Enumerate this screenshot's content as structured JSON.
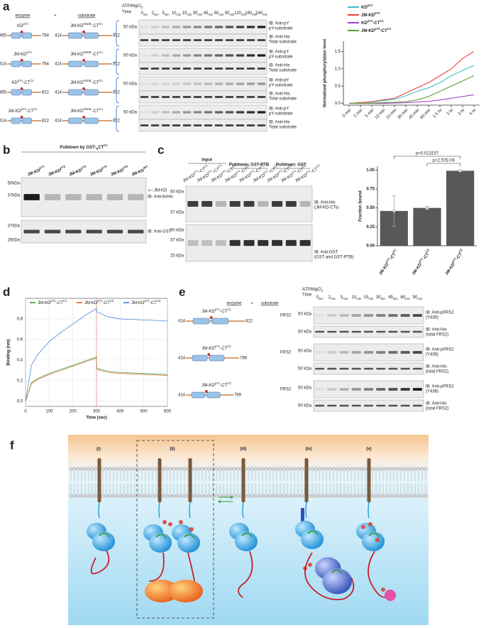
{
  "panels": {
    "a": {
      "letter": "a",
      "enzyme_header": "enzyme",
      "plus": "+",
      "substrate_header": "substrate",
      "rows": [
        {
          "enzyme": [
            "KD",
            {
              "sup": "pY1"
            }
          ],
          "substrate": [
            "JM-KD",
            {
              "sup": "K518L"
            },
            "-CT",
            {
              "sup": "C1"
            }
          ],
          "enzyme_range": [
            "465",
            "764"
          ],
          "substrate_range": [
            "414",
            "822"
          ]
        },
        {
          "enzyme": [
            "JM-KD",
            {
              "sup": "pY1"
            }
          ],
          "substrate": [
            "JM-KD",
            {
              "sup": "K518L"
            },
            "-CT",
            {
              "sup": "C1"
            }
          ],
          "enzyme_range": [
            "414",
            "764"
          ],
          "substrate_range": [
            "414",
            "822"
          ]
        },
        {
          "enzyme": [
            "KD",
            {
              "sup": "pY1"
            },
            "-CT",
            {
              "sup": "C1"
            }
          ],
          "substrate": [
            "JM-KD",
            {
              "sup": "K518L"
            },
            "-CT",
            {
              "sup": "C1"
            }
          ],
          "enzyme_range": [
            "465",
            "822"
          ],
          "substrate_range": [
            "414",
            "822"
          ]
        },
        {
          "enzyme": [
            "JM-KD",
            {
              "sup": "pY1"
            },
            "-CT",
            {
              "sup": "C1"
            }
          ],
          "substrate": [
            "JM-KD",
            {
              "sup": "K518L"
            },
            "-CT",
            {
              "sup": "C1"
            }
          ],
          "enzyme_range": [
            "414",
            "822"
          ],
          "substrate_range": [
            "414",
            "822"
          ]
        }
      ],
      "treatment": [
        "ATP/MgCl",
        {
          "sub": "2"
        }
      ],
      "time_label": "Time",
      "times": [
        [
          "0",
          {
            "sub": "min"
          }
        ],
        [
          "2",
          {
            "sub": "min"
          }
        ],
        [
          "5",
          {
            "sub": "min"
          }
        ],
        [
          "10",
          {
            "sub": "min"
          }
        ],
        [
          "15",
          {
            "sub": "min"
          }
        ],
        [
          "30",
          {
            "sub": "min"
          }
        ],
        [
          "45",
          {
            "sub": "min"
          }
        ],
        [
          "60",
          {
            "sub": "min"
          }
        ],
        [
          "90",
          {
            "sub": "min"
          }
        ],
        [
          "120",
          {
            "sub": "min"
          }
        ],
        [
          "180",
          {
            "sub": "min"
          }
        ],
        [
          "240",
          {
            "sub": "min"
          }
        ]
      ],
      "mw": "50 kDa",
      "ib": [
        [
          "IB: Anti-pY",
          "pY-substrate"
        ],
        [
          "IB: Anti-His",
          "Total substrate"
        ]
      ]
    },
    "b": {
      "letter": "b",
      "title": [
        "Pulldown by GST-",
        {
          "sub": "P"
        },
        "CT",
        {
          "sup": "C1"
        }
      ],
      "lanes": [
        [
          "JM-KD",
          {
            "sup": "pY1"
          }
        ],
        [
          "JM-KD",
          {
            "sup": "pY2"
          }
        ],
        [
          "JM-KD",
          {
            "sup": "pY3"
          }
        ],
        [
          "JM-KD",
          {
            "sup": "pY4"
          }
        ],
        [
          "JM-KD",
          {
            "sup": "pY5"
          }
        ],
        [
          "JM-KD",
          {
            "sup": "WT"
          }
        ]
      ],
      "mw": [
        "50kDa",
        "37kDa",
        "37kDa",
        "25kDa"
      ],
      "band_label": "JM-KD",
      "ib": [
        "IB: Anti-6xHis",
        "IB: Anti-GST"
      ]
    },
    "c": {
      "letter": "c",
      "groups": [
        "Input",
        "Pulldown: GST-PTB",
        "Pulldown: GST"
      ],
      "lanes": [
        [
          "JM-KD",
          {
            "sup": "pY1"
          },
          "-CT",
          {
            "sup": "C1"
          }
        ],
        [
          "JM-KD",
          {
            "sup": "pY1"
          },
          "-CT",
          {
            "sup": "C2"
          }
        ],
        [
          "JM-KD",
          {
            "sup": "pY1"
          },
          "-CT",
          {
            "sup": "C3"
          }
        ],
        [
          "JM-KD",
          {
            "sup": "pY1"
          },
          "-CT",
          {
            "sup": "C1"
          }
        ],
        [
          "JM-KD",
          {
            "sup": "pY1"
          },
          "-CT",
          {
            "sup": "C2"
          }
        ],
        [
          "JM-KD",
          {
            "sup": "pY1"
          },
          "-CT",
          {
            "sup": "C3"
          }
        ],
        [
          "JM-KD",
          {
            "sup": "pY1"
          },
          "-CT",
          {
            "sup": "C1"
          }
        ],
        [
          "JM-KD",
          {
            "sup": "pY1"
          },
          "-CT",
          {
            "sup": "C2"
          }
        ],
        [
          "JM-KD",
          {
            "sup": "pY1"
          },
          "-CT",
          {
            "sup": "C3"
          }
        ]
      ],
      "mw": [
        "50 kDa",
        "37 kDa",
        "50 kDa",
        "37 kDa",
        "25 kDa"
      ],
      "ib": [
        [
          "IB: Anti-His",
          "(JM-KD-CTs)"
        ],
        [
          "IB: Anti-GST",
          "(GST and GST-PTB)"
        ]
      ]
    },
    "d": {
      "letter": "d"
    },
    "e": {
      "letter": "e",
      "enzyme_header": "enzyme",
      "plus": "+",
      "substrate_header": "substrate",
      "constructs": [
        {
          "name": [
            "JM-KD",
            {
              "sup": "pY1"
            },
            "-CT",
            {
              "sup": "C1"
            }
          ],
          "range": [
            "414",
            "822"
          ]
        },
        {
          "name": [
            "JM-KD",
            {
              "sup": "pY1"
            },
            "-CT",
            {
              "sup": "C2"
            }
          ],
          "range": [
            "414",
            "788"
          ]
        },
        {
          "name": [
            "JM-KD",
            {
              "sup": "pY1"
            },
            "-CT",
            {
              "sup": "C3"
            }
          ],
          "range": [
            "414",
            "769"
          ]
        }
      ],
      "substrate": "FRS2",
      "treatment": [
        "ATP/MgCl",
        {
          "sub": "2"
        }
      ],
      "time_label": "Time",
      "times": [
        [
          "0",
          {
            "sub": "min"
          }
        ],
        [
          "2",
          {
            "sub": "min"
          }
        ],
        [
          "5",
          {
            "sub": "min"
          }
        ],
        [
          "10",
          {
            "sub": "min"
          }
        ],
        [
          "15",
          {
            "sub": "min"
          }
        ],
        [
          "30",
          {
            "sub": "min"
          }
        ],
        [
          "45",
          {
            "sub": "min"
          }
        ],
        [
          "60",
          {
            "sub": "min"
          }
        ],
        [
          "90",
          {
            "sub": "min"
          }
        ]
      ],
      "mw": "50 kDa",
      "ib": [
        [
          "IB: Anti-pFRS2",
          "(Y436)"
        ],
        [
          "IB: Anti-His",
          "(total FRS2)"
        ]
      ]
    },
    "f": {
      "letter": "f",
      "states": [
        "(i)",
        "(ii)",
        "(iii)",
        "(iv)",
        "(v)"
      ]
    }
  },
  "chart_data": [
    {
      "type": "line",
      "ylabel": "Normalized phosphorylation level",
      "categories": [
        "0 min",
        "2 min",
        "5 min",
        "10 min",
        "15 min",
        "30 min",
        "45 min",
        "60 min",
        "1.5 hr",
        "2 hr",
        "3 hr",
        "4 hr"
      ],
      "ylim": [
        -0.05,
        1.8
      ],
      "yticks": [
        {
          "value": 0,
          "label": "0.0"
        },
        {
          "value": 0.5,
          "label": "0.5"
        },
        {
          "value": 1,
          "label": "1.0"
        },
        {
          "value": 1.5,
          "label": "1.5"
        }
      ],
      "legend": "upper left",
      "series": [
        {
          "name": [
            "KD",
            {
              "sup": "pY1"
            }
          ],
          "color": "#3cc3c8",
          "values": [
            0,
            0.02,
            0.04,
            0.08,
            0.12,
            0.22,
            0.35,
            0.45,
            0.6,
            0.8,
            0.95,
            1.1
          ]
        },
        {
          "name": [
            "JM-KD",
            {
              "sup": "pY1"
            }
          ],
          "color": "#e8463e",
          "values": [
            0,
            0.02,
            0.05,
            0.1,
            0.15,
            0.3,
            0.45,
            0.6,
            0.8,
            1.0,
            1.3,
            1.5
          ]
        },
        {
          "name": [
            "KD",
            {
              "sup": "pY1"
            },
            "-CT",
            {
              "sup": "C1"
            }
          ],
          "color": "#a444c8",
          "values": [
            0,
            0,
            0,
            0,
            0.01,
            0.02,
            0.04,
            0.06,
            0.1,
            0.15,
            0.2,
            0.25
          ]
        },
        {
          "name": [
            "JM-KD",
            {
              "sup": "pY1"
            },
            "-CT",
            {
              "sup": "C1"
            }
          ],
          "color": "#5f9e38",
          "values": [
            0,
            0,
            0.01,
            0.02,
            0.03,
            0.05,
            0.1,
            0.2,
            0.35,
            0.5,
            0.65,
            0.8
          ]
        }
      ]
    },
    {
      "type": "bar",
      "ylabel": "Fraction bound",
      "color": "#585858",
      "categories": [
        [
          "JM-KD",
          {
            "sup": "pY1"
          },
          "-CT",
          {
            "sup": "C1"
          }
        ],
        [
          "JM-KD",
          {
            "sup": "pY1"
          },
          "-CT",
          {
            "sup": "C2"
          }
        ],
        [
          "JM-KD",
          {
            "sup": "pY1"
          },
          "-CT",
          {
            "sup": "C3"
          }
        ]
      ],
      "values": [
        0.46,
        0.5,
        0.99
      ],
      "errors": [
        0.2,
        0.02,
        0.01
      ],
      "ylim": [
        0,
        1.05
      ],
      "yticks": [
        {
          "value": 0,
          "label": "0.00"
        },
        {
          "value": 0.25,
          "label": "0.25"
        },
        {
          "value": 0.5,
          "label": "0.50"
        },
        {
          "value": 0.75,
          "label": "0.75"
        },
        {
          "value": 1,
          "label": "1.00"
        }
      ],
      "annotations": [
        "p=0.013157",
        "p=2.57E-06"
      ]
    },
    {
      "type": "line",
      "xlabel": "Time (sec)",
      "ylabel": "Binding (nm)",
      "grid": true,
      "legend": "upper center",
      "x": [
        0,
        25,
        50,
        100,
        150,
        200,
        250,
        300,
        301,
        350,
        400,
        500,
        600
      ],
      "xlim": [
        0,
        600
      ],
      "xticks": [
        0,
        100,
        200,
        300,
        400,
        500,
        600
      ],
      "ylim": [
        -0.05,
        1.0
      ],
      "yticks": [
        {
          "value": 0,
          "label": "0.0"
        },
        {
          "value": 0.2,
          "label": "0.2"
        },
        {
          "value": 0.4,
          "label": "0.4"
        },
        {
          "value": 0.6,
          "label": "0.6"
        },
        {
          "value": 0.8,
          "label": "0.8"
        }
      ],
      "vline": 300,
      "series": [
        {
          "name": [
            "JM-KD",
            {
              "sup": "pY1"
            },
            "-CT",
            {
              "sup": "C1"
            }
          ],
          "color": "#4aa84a",
          "values": [
            0,
            0.18,
            0.22,
            0.27,
            0.31,
            0.35,
            0.39,
            0.43,
            0.32,
            0.29,
            0.28,
            0.27,
            0.26
          ]
        },
        {
          "name": [
            "JM-KD",
            {
              "sup": "pY1"
            },
            "-CT",
            {
              "sup": "C2"
            }
          ],
          "color": "#e0743a",
          "values": [
            0,
            0.17,
            0.21,
            0.26,
            0.3,
            0.34,
            0.38,
            0.42,
            0.31,
            0.28,
            0.27,
            0.26,
            0.25
          ]
        },
        {
          "name": [
            "JM-KD",
            {
              "sup": "pY1"
            },
            "-CT",
            {
              "sup": "C3"
            }
          ],
          "color": "#4a8ad8",
          "values": [
            0,
            0.35,
            0.45,
            0.58,
            0.67,
            0.75,
            0.83,
            0.9,
            0.87,
            0.82,
            0.8,
            0.79,
            0.78
          ]
        }
      ]
    }
  ]
}
